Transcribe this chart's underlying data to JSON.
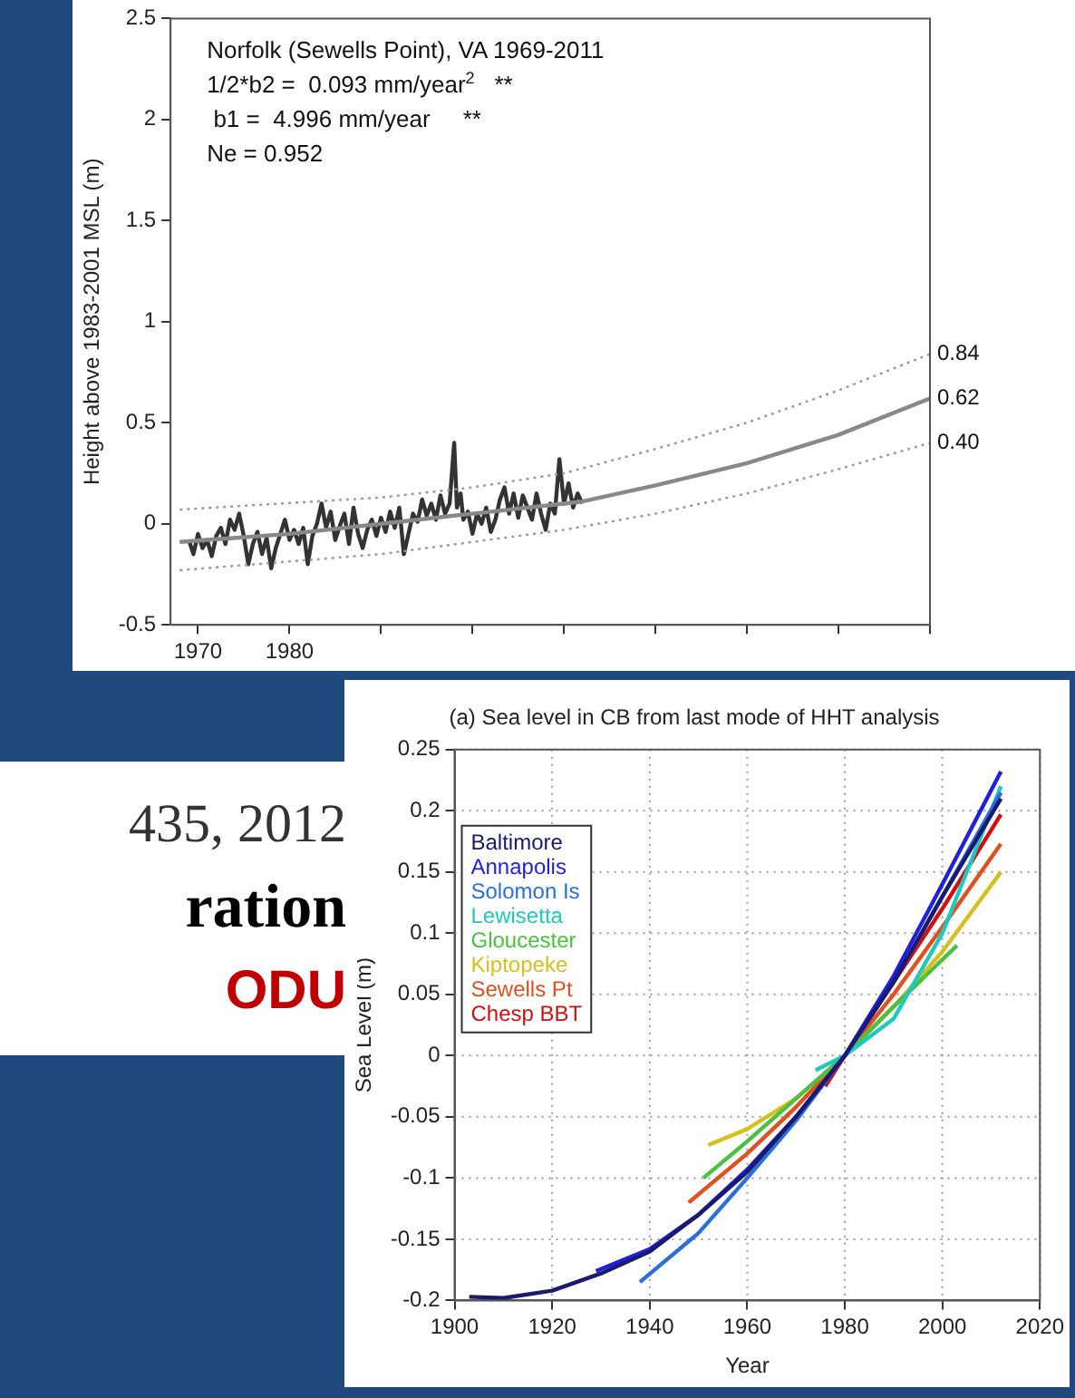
{
  "chart_data": [
    {
      "type": "line",
      "ylabel": "Height above 1983-2001 MSL (m)",
      "annotations": [
        "Norfolk (Sewells Point), VA 1969-2011",
        "1/2*b2 =  0.093 mm/year$^{2}$   **",
        " b1 =  4.996 mm/year     **",
        "Ne = 0.952",
        "0.84",
        "0.62",
        "0.40"
      ],
      "xlim": [
        1967,
        2050
      ],
      "xticks": [
        1970,
        1980,
        {
          "value": 1990,
          "label": null
        },
        {
          "value": 2000,
          "label": null
        },
        {
          "value": 2010,
          "label": null
        },
        {
          "value": 2020,
          "label": null
        },
        {
          "value": 2030,
          "label": null
        },
        {
          "value": 2040,
          "label": null
        },
        {
          "value": 2050,
          "label": null
        }
      ],
      "ylim": [
        -0.5,
        2.5
      ],
      "yticks": [
        -0.5,
        0,
        0.5,
        1,
        1.5,
        2,
        2.5
      ],
      "grid": false,
      "series": [
        {
          "color": "#999999",
          "line_style": "dotted",
          "x": [
            1968,
            1990,
            2000,
            2010,
            2020,
            2030,
            2040,
            2050
          ],
          "values": [
            0.07,
            0.13,
            0.18,
            0.25,
            0.37,
            0.5,
            0.66,
            0.84
          ]
        },
        {
          "color": "#999999",
          "line_style": "dotted",
          "x": [
            1968,
            1990,
            2000,
            2010,
            2020,
            2030,
            2040,
            2050
          ],
          "values": [
            -0.23,
            -0.15,
            -0.09,
            -0.03,
            0.05,
            0.15,
            0.27,
            0.4
          ]
        },
        {
          "color": "#888888",
          "line_style": "solid",
          "x": [
            1968,
            1980,
            1990,
            2000,
            2012,
            2020,
            2030,
            2040,
            2050
          ],
          "values": [
            -0.09,
            -0.05,
            0.0,
            0.05,
            0.11,
            0.19,
            0.3,
            0.44,
            0.62
          ]
        },
        {
          "color": "#333333",
          "line_style": "solid",
          "x": [
            1969,
            1969.5,
            1970,
            1970.5,
            1971,
            1971.5,
            1972,
            1972.5,
            1973,
            1973.5,
            1974,
            1974.5,
            1975,
            1975.5,
            1976,
            1976.5,
            1977,
            1977.5,
            1978,
            1978.5,
            1979,
            1979.5,
            1980,
            1980.5,
            1981,
            1981.5,
            1982,
            1982.5,
            1983,
            1983.5,
            1984,
            1984.5,
            1985,
            1985.5,
            1986,
            1986.5,
            1987,
            1987.5,
            1988,
            1988.5,
            1989,
            1989.5,
            1990,
            1990.5,
            1991,
            1991.5,
            1992,
            1992.5,
            1993,
            1993.5,
            1994,
            1994.5,
            1995,
            1995.5,
            1996,
            1996.5,
            1997,
            1997.5,
            1998,
            1998.3,
            1998.7,
            1999,
            1999.5,
            2000,
            2000.5,
            2001,
            2001.5,
            2002,
            2002.5,
            2003,
            2003.5,
            2004,
            2004.5,
            2005,
            2005.5,
            2006,
            2006.5,
            2007,
            2007.5,
            2008,
            2008.5,
            2009,
            2009.5,
            2010,
            2010.5,
            2011,
            2011.5,
            2012
          ],
          "values": [
            -0.08,
            -0.15,
            -0.05,
            -0.12,
            -0.08,
            -0.16,
            -0.06,
            -0.02,
            -0.1,
            0.02,
            -0.03,
            0.05,
            -0.06,
            -0.2,
            -0.1,
            -0.04,
            -0.15,
            -0.07,
            -0.22,
            -0.12,
            -0.05,
            0.02,
            -0.08,
            -0.03,
            -0.1,
            -0.02,
            -0.2,
            -0.06,
            0.0,
            0.1,
            -0.02,
            0.06,
            -0.08,
            -0.01,
            0.05,
            -0.1,
            0.08,
            -0.05,
            -0.12,
            -0.03,
            0.02,
            -0.06,
            0.03,
            -0.04,
            0.06,
            -0.02,
            0.08,
            -0.15,
            -0.05,
            0.05,
            0.01,
            0.12,
            0.04,
            0.1,
            0.02,
            0.14,
            0.05,
            0.1,
            0.4,
            0.08,
            0.15,
            0.02,
            0.06,
            -0.05,
            0.05,
            0.0,
            0.08,
            -0.04,
            0.02,
            0.12,
            0.18,
            0.05,
            0.15,
            0.03,
            0.14,
            0.08,
            0.02,
            0.15,
            0.05,
            -0.03,
            0.1,
            0.05,
            0.32,
            0.1,
            0.2,
            0.08,
            0.15,
            0.1
          ]
        }
      ]
    },
    {
      "type": "line",
      "title": "(a) Sea level in CB from last mode of HHT analysis",
      "xlabel": "Year",
      "ylabel": "Sea Level (m)",
      "xlim": [
        1900,
        2020
      ],
      "xticks": [
        1900,
        1920,
        1940,
        1960,
        1980,
        2000,
        2020
      ],
      "ylim": [
        -0.2,
        0.25
      ],
      "yticks": [
        -0.2,
        -0.15,
        -0.1,
        -0.05,
        0,
        0.05,
        0.1,
        0.15,
        0.2,
        0.25
      ],
      "grid": true,
      "legend": "top left",
      "line_style": "solid",
      "series": [
        {
          "name": "Baltimore",
          "color": "#1a1a6e",
          "x": [
            1903,
            1910,
            1920,
            1930,
            1940,
            1950,
            1960,
            1970,
            1980,
            1990,
            2000,
            2012
          ],
          "values": [
            -0.197,
            -0.198,
            -0.192,
            -0.178,
            -0.16,
            -0.13,
            -0.095,
            -0.05,
            0,
            0.06,
            0.13,
            0.21
          ]
        },
        {
          "name": "Annapolis",
          "color": "#1f1fe0",
          "x": [
            1929,
            1940,
            1950,
            1960,
            1970,
            1980,
            1990,
            2000,
            2012
          ],
          "values": [
            -0.176,
            -0.158,
            -0.13,
            -0.093,
            -0.05,
            0,
            0.065,
            0.14,
            0.232
          ]
        },
        {
          "name": "Solomon Is",
          "color": "#2a6fdb",
          "x": [
            1938,
            1950,
            1960,
            1970,
            1980,
            1990,
            2000,
            2012
          ],
          "values": [
            -0.185,
            -0.145,
            -0.1,
            -0.053,
            0,
            0.06,
            0.13,
            0.215
          ]
        },
        {
          "name": "Lewisetta",
          "color": "#20c8c0",
          "x": [
            1974,
            1980,
            1990,
            2000,
            2012
          ],
          "values": [
            -0.012,
            0,
            0.03,
            0.1,
            0.22
          ]
        },
        {
          "name": "Gloucester",
          "color": "#4cc040",
          "x": [
            1951,
            1960,
            1970,
            1980,
            1990,
            2003
          ],
          "values": [
            -0.1,
            -0.07,
            -0.035,
            0,
            0.04,
            0.09
          ]
        },
        {
          "name": "Kiptopeke",
          "color": "#d4c020",
          "x": [
            1952,
            1960,
            1970,
            1980,
            1990,
            2000,
            2012
          ],
          "values": [
            -0.073,
            -0.06,
            -0.035,
            0,
            0.04,
            0.085,
            0.15
          ]
        },
        {
          "name": "Sewells Pt",
          "color": "#e05020",
          "x": [
            1948,
            1960,
            1970,
            1980,
            1990,
            2000,
            2012
          ],
          "values": [
            -0.12,
            -0.08,
            -0.042,
            0,
            0.05,
            0.105,
            0.173
          ]
        },
        {
          "name": "Chesp BBT",
          "color": "#d01010",
          "x": [
            1976,
            1980,
            1990,
            2000,
            2012
          ],
          "values": [
            -0.025,
            0,
            0.06,
            0.12,
            0.197
          ]
        }
      ]
    },
    {
      "type": "other",
      "annotations": [
        "435, 2012",
        "ration",
        "ODU"
      ]
    }
  ]
}
